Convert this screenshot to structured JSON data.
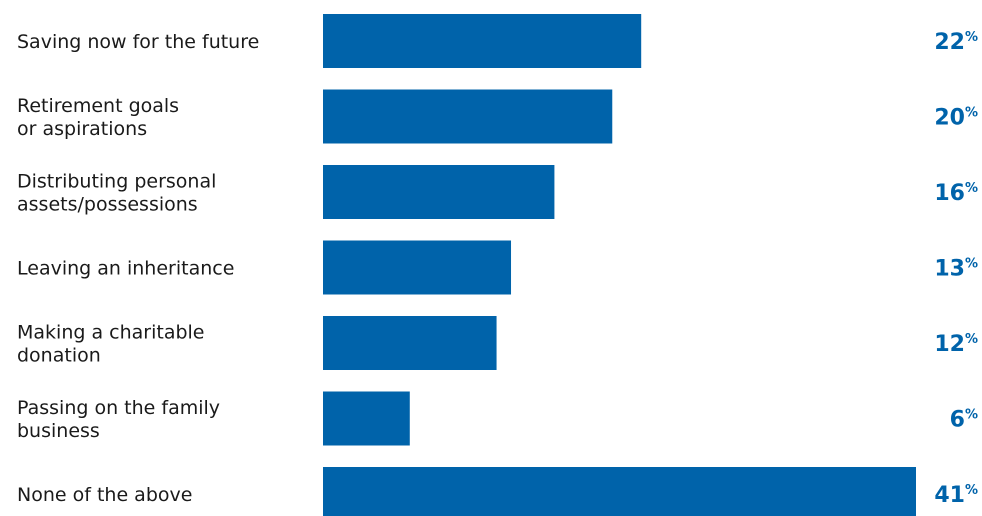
{
  "chart_data": {
    "type": "bar",
    "orientation": "horizontal",
    "categories": [
      [
        "Saving now for the future"
      ],
      [
        "Retirement goals",
        "or aspirations"
      ],
      [
        "Distributing personal",
        "assets/possessions"
      ],
      [
        "Leaving an inheritance"
      ],
      [
        "Making a charitable",
        "donation"
      ],
      [
        "Passing on the family",
        "business"
      ],
      [
        "None of the above"
      ]
    ],
    "values": [
      22,
      20,
      16,
      13,
      12,
      6,
      41
    ],
    "value_suffix": "%",
    "xlim": [
      0,
      41
    ],
    "grid": false,
    "legend": "none",
    "bar_color": "#0063AA",
    "value_color": "#0063AA",
    "label_color": "#1a1a1a"
  }
}
